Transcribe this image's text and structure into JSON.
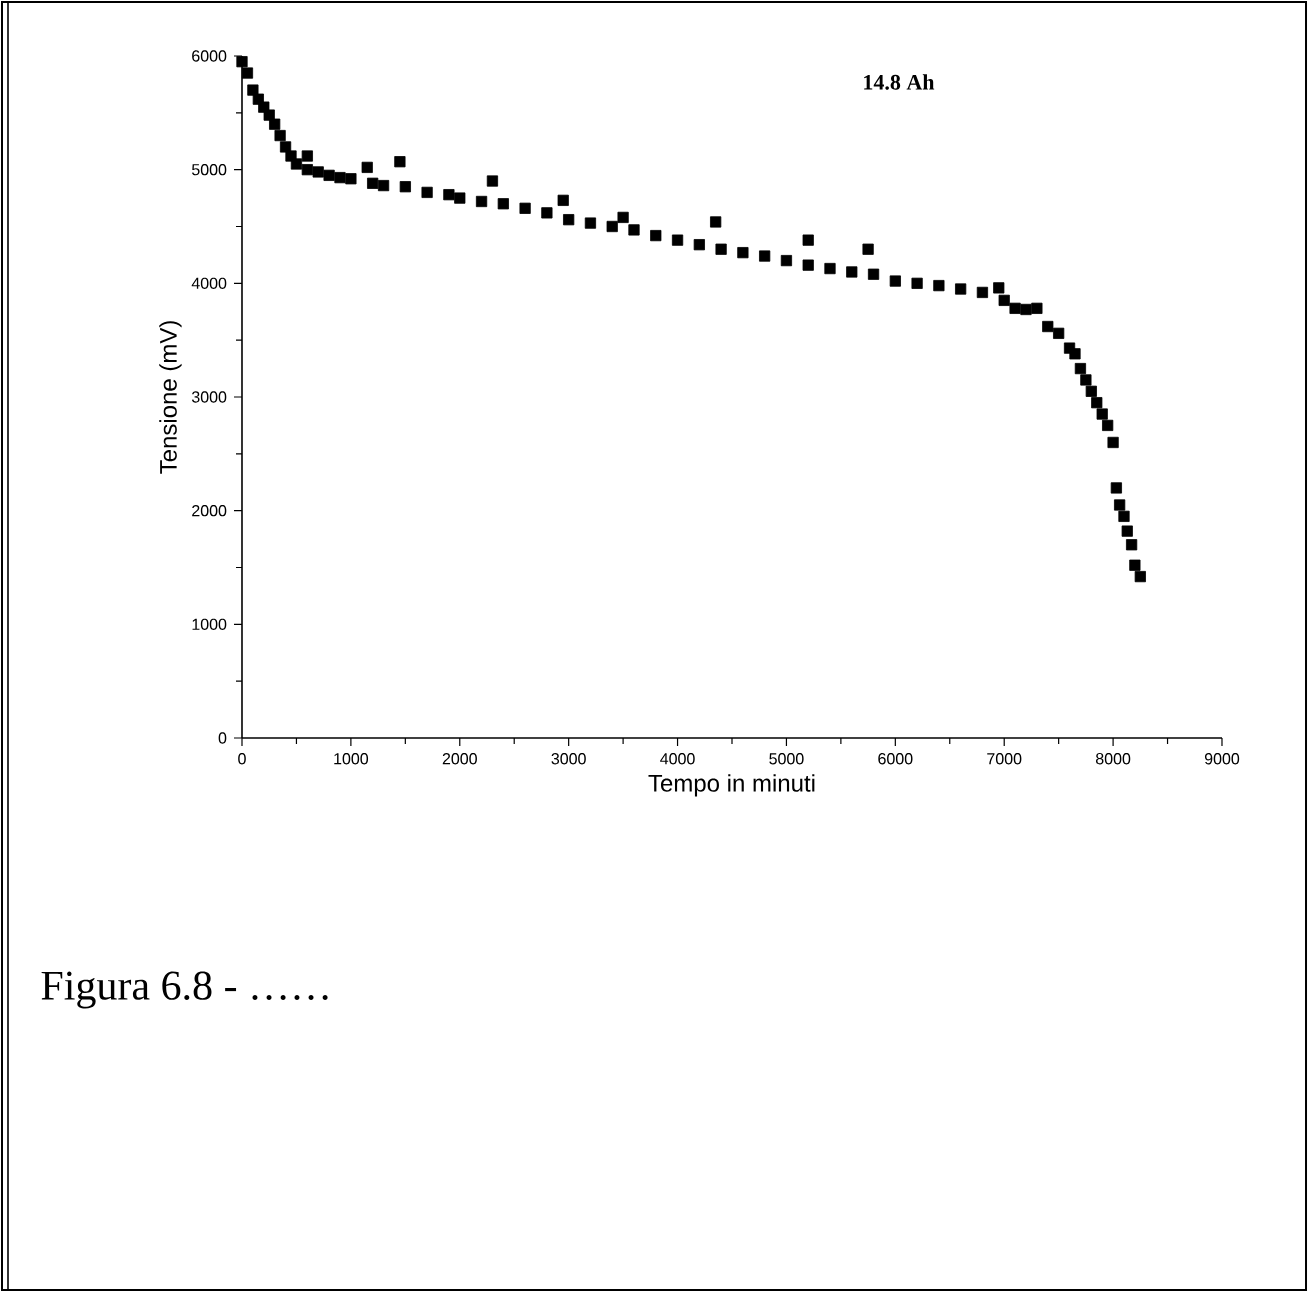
{
  "chart_data": {
    "type": "scatter",
    "xlabel": "Tempo in minuti",
    "ylabel": "Tensione (mV)",
    "xlim": [
      0,
      9000
    ],
    "ylim": [
      0,
      6000
    ],
    "xticks": [
      0,
      1000,
      2000,
      3000,
      4000,
      5000,
      6000,
      7000,
      8000,
      9000
    ],
    "yticks": [
      0,
      1000,
      2000,
      3000,
      4000,
      5000,
      6000
    ],
    "marker": "square",
    "annotations": [
      "14.8 Ah",
      "Figura 6.8 - ……"
    ],
    "series": [
      {
        "color": "#000000",
        "x": [
          0,
          50,
          100,
          150,
          200,
          250,
          300,
          350,
          400,
          450,
          500,
          600,
          600,
          700,
          800,
          900,
          1000,
          1150,
          1200,
          1300,
          1450,
          1500,
          1700,
          1900,
          2000,
          2200,
          2300,
          2400,
          2600,
          2800,
          2950,
          3000,
          3200,
          3400,
          3500,
          3600,
          3800,
          4000,
          4200,
          4350,
          4400,
          4600,
          4800,
          5000,
          5200,
          5200,
          5400,
          5600,
          5750,
          5800,
          6000,
          6200,
          6400,
          6600,
          6800,
          6950,
          7000,
          7100,
          7200,
          7300,
          7400,
          7500,
          7600,
          7650,
          7700,
          7750,
          7800,
          7850,
          7900,
          7950,
          8000,
          8030,
          8060,
          8100,
          8130,
          8170,
          8200,
          8250
        ],
        "values": [
          5950,
          5850,
          5700,
          5620,
          5550,
          5480,
          5400,
          5300,
          5200,
          5120,
          5050,
          5000,
          5120,
          4980,
          4950,
          4930,
          4920,
          5020,
          4880,
          4860,
          5070,
          4850,
          4800,
          4780,
          4750,
          4720,
          4900,
          4700,
          4660,
          4620,
          4730,
          4560,
          4530,
          4500,
          4580,
          4470,
          4420,
          4380,
          4340,
          4540,
          4300,
          4270,
          4240,
          4200,
          4160,
          4380,
          4130,
          4100,
          4300,
          4080,
          4020,
          4000,
          3980,
          3950,
          3920,
          3960,
          3850,
          3780,
          3770,
          3780,
          3620,
          3560,
          3430,
          3380,
          3250,
          3150,
          3050,
          2950,
          2850,
          2750,
          2600,
          2200,
          2050,
          1950,
          1820,
          1700,
          1520,
          1420
        ]
      }
    ]
  }
}
